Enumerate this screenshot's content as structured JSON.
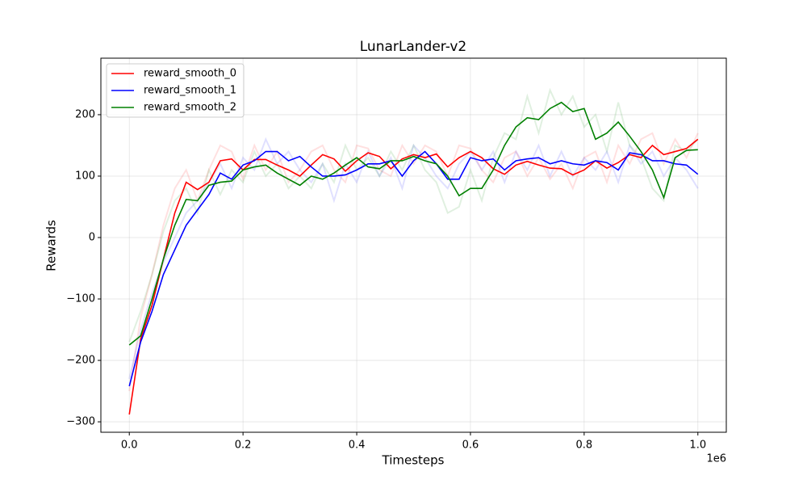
{
  "chart_data": {
    "type": "line",
    "title": "LunarLander-v2",
    "x_label": "Timesteps",
    "y_label": "Rewards",
    "x_offset_label": "1e6",
    "x": [
      0,
      20000,
      40000,
      60000,
      80000,
      100000,
      120000,
      140000,
      160000,
      180000,
      200000,
      220000,
      240000,
      260000,
      280000,
      300000,
      320000,
      340000,
      360000,
      380000,
      400000,
      420000,
      440000,
      460000,
      480000,
      500000,
      520000,
      540000,
      560000,
      580000,
      600000,
      620000,
      640000,
      660000,
      680000,
      700000,
      720000,
      740000,
      760000,
      780000,
      800000,
      820000,
      840000,
      860000,
      880000,
      900000,
      920000,
      940000,
      960000,
      980000,
      1000000
    ],
    "series": [
      {
        "name": "reward_smooth_0",
        "color": "#ff0000",
        "raw_alpha": 0.12,
        "values": [
          -288,
          -165,
          -110,
          -35,
          40,
          90,
          78,
          90,
          125,
          128,
          110,
          127,
          127,
          118,
          110,
          100,
          118,
          135,
          128,
          108,
          125,
          138,
          132,
          112,
          128,
          135,
          130,
          136,
          115,
          130,
          140,
          130,
          112,
          103,
          118,
          124,
          118,
          113,
          112,
          102,
          110,
          125,
          113,
          122,
          135,
          130,
          150,
          135,
          140,
          145,
          160
        ],
        "raw": [
          -250,
          -130,
          -60,
          20,
          80,
          110,
          60,
          110,
          150,
          140,
          95,
          150,
          110,
          140,
          90,
          110,
          140,
          150,
          110,
          90,
          150,
          145,
          110,
          100,
          150,
          120,
          150,
          140,
          100,
          150,
          145,
          110,
          90,
          130,
          140,
          100,
          130,
          95,
          120,
          80,
          130,
          140,
          90,
          150,
          120,
          160,
          170,
          120,
          160,
          130,
          170
        ]
      },
      {
        "name": "reward_smooth_1",
        "color": "#0000ff",
        "raw_alpha": 0.12,
        "values": [
          -242,
          -170,
          -120,
          -60,
          -20,
          20,
          45,
          70,
          105,
          95,
          118,
          125,
          140,
          140,
          125,
          132,
          115,
          100,
          100,
          102,
          110,
          120,
          120,
          125,
          100,
          125,
          140,
          120,
          95,
          95,
          130,
          125,
          128,
          110,
          125,
          128,
          130,
          120,
          125,
          120,
          118,
          125,
          122,
          110,
          138,
          135,
          125,
          125,
          120,
          118,
          103
        ],
        "raw": [
          -230,
          -150,
          -90,
          -40,
          0,
          40,
          60,
          90,
          120,
          80,
          130,
          110,
          160,
          120,
          140,
          110,
          90,
          120,
          60,
          120,
          90,
          140,
          100,
          130,
          80,
          150,
          130,
          100,
          80,
          120,
          140,
          110,
          140,
          90,
          140,
          110,
          150,
          100,
          140,
          100,
          130,
          110,
          140,
          90,
          150,
          120,
          140,
          100,
          130,
          110,
          80
        ]
      },
      {
        "name": "reward_smooth_2",
        "color": "#008000",
        "raw_alpha": 0.12,
        "values": [
          -175,
          -160,
          -100,
          -35,
          20,
          62,
          60,
          85,
          90,
          92,
          110,
          115,
          118,
          105,
          95,
          85,
          100,
          95,
          105,
          118,
          130,
          115,
          112,
          125,
          125,
          132,
          125,
          120,
          100,
          68,
          80,
          80,
          110,
          150,
          180,
          195,
          192,
          210,
          220,
          205,
          210,
          160,
          170,
          188,
          165,
          140,
          110,
          65,
          130,
          142,
          143
        ],
        "raw": [
          -170,
          -120,
          -60,
          10,
          60,
          80,
          40,
          110,
          70,
          110,
          90,
          140,
          100,
          120,
          80,
          100,
          80,
          120,
          90,
          150,
          110,
          130,
          100,
          140,
          110,
          150,
          110,
          90,
          40,
          50,
          110,
          60,
          130,
          170,
          160,
          230,
          170,
          240,
          200,
          230,
          180,
          200,
          140,
          220,
          150,
          130,
          80,
          60,
          150,
          140,
          160
        ]
      }
    ],
    "xlim": [
      -50000,
      1050000
    ],
    "xticks": [
      {
        "value": 0,
        "label": "0.0"
      },
      {
        "value": 200000,
        "label": "0.2"
      },
      {
        "value": 400000,
        "label": "0.4"
      },
      {
        "value": 600000,
        "label": "0.6"
      },
      {
        "value": 800000,
        "label": "0.8"
      },
      {
        "value": 1000000,
        "label": "1.0"
      }
    ],
    "ylim": [
      -317,
      292
    ],
    "yticks": [
      {
        "value": -300,
        "label": "−300"
      },
      {
        "value": -200,
        "label": "−200"
      },
      {
        "value": -100,
        "label": "−100"
      },
      0,
      100,
      200
    ],
    "grid": true,
    "legend": "upper left"
  }
}
